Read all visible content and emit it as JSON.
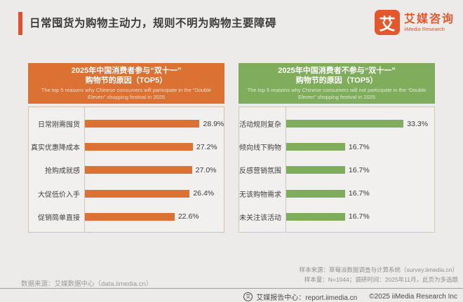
{
  "page": {
    "title": "日常囤货为购物主动力，规则不明为购物主要障碍",
    "background": "#ECEBE9"
  },
  "logo": {
    "symbol": "艾",
    "name_cn": "艾媒咨询",
    "name_en": "iiMedia Research",
    "brand_color": "#E2582C"
  },
  "chart_data": [
    {
      "type": "bar",
      "orientation": "horizontal",
      "title_line1": "2025年中国消费者参与“双十一”",
      "title_line2": "购物节的原因（TOP5）",
      "subtitle": "The top 5 reasons why Chinese consumers will participate in the “Double Eleven” shopping festival in 2025",
      "categories": [
        "日常刚需囤货",
        "真实优惠降成本",
        "抢购成就感",
        "大促低价入手",
        "促销简单直接"
      ],
      "values": [
        28.9,
        27.2,
        27.0,
        26.4,
        22.6
      ],
      "value_labels": [
        "28.9%",
        "27.2%",
        "27.0%",
        "26.4%",
        "22.6%"
      ],
      "color": "#DC7134",
      "xlim": [
        0,
        35
      ],
      "grid": "off",
      "legend": "none"
    },
    {
      "type": "bar",
      "orientation": "horizontal",
      "title_line1": "2025年中国消费者不参与“双十一”",
      "title_line2": "购物节的原因（TOP5）",
      "subtitle": "The top 5 reasons why Chinese consumers will not participate in the “Double Eleven” shopping festival in 2025",
      "categories": [
        "活动规则复杂",
        "倾向线下购物",
        "反感营销氛围",
        "无该购物需求",
        "未关注该活动"
      ],
      "values": [
        33.3,
        16.7,
        16.7,
        16.7,
        16.7
      ],
      "value_labels": [
        "33.3%",
        "16.7%",
        "16.7%",
        "16.7%",
        "16.7%"
      ],
      "color": "#7FAD5C",
      "xlim": [
        0,
        42
      ],
      "grid": "off",
      "legend": "none"
    }
  ],
  "footer": {
    "data_source": "数据来源：艾媒数据中心（data.iimedia.cn）",
    "sample_source": "样本来源：草莓派数据调查与计算系统（survey.iimedia.cn）",
    "sample_info": "样本量：N=1044；调研时间：2025年11月，此页为多选题",
    "report_center": "艾媒报告中心：report.iimedia.cn",
    "copyright": "©2025  iiMedia Research  Inc"
  }
}
